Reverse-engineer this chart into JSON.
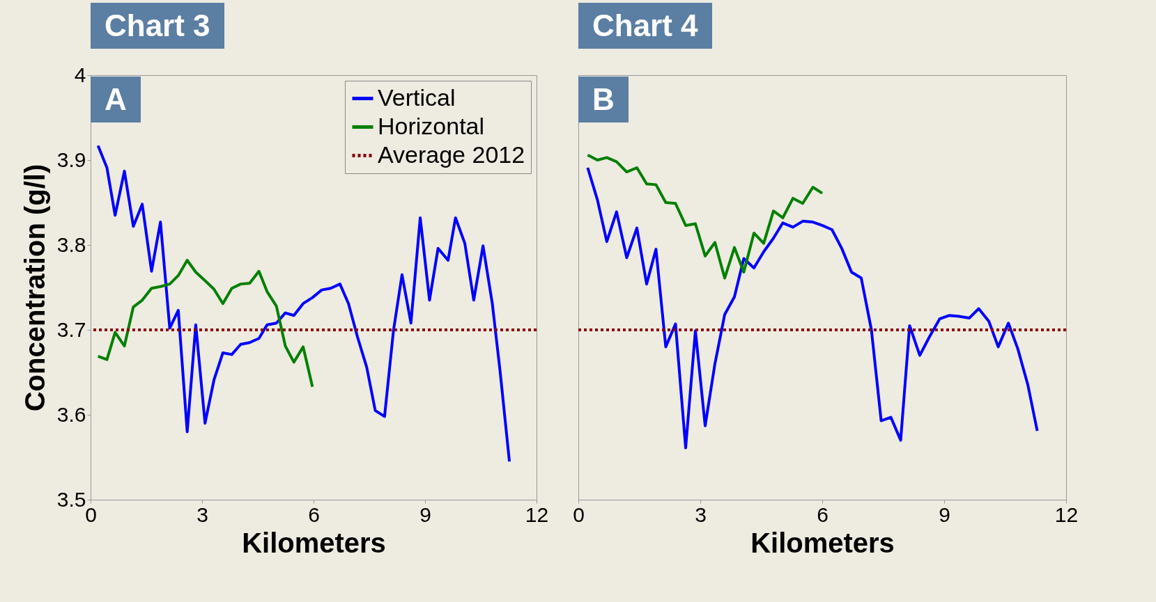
{
  "chart_data": [
    {
      "type": "line",
      "title": "Chart 3",
      "subtitle": "A",
      "xlabel": "Kilometers",
      "ylabel": "Concentration (g/l)",
      "xlim": [
        0,
        12
      ],
      "xticks": [
        0,
        3,
        6,
        9,
        12
      ],
      "ylim": [
        3.5,
        4
      ],
      "yticks": [
        3.5,
        3.6,
        3.7,
        3.8,
        3.9,
        4
      ],
      "legend": "top right",
      "grid": false,
      "ref_lines": [
        {
          "axis": "y",
          "value": 3.7,
          "label": "Average 2012",
          "color": "#8b0000",
          "line_style": "dotted"
        }
      ],
      "series": [
        {
          "name": "Vertical",
          "color": "#0000ff",
          "x": [
            0.2,
            0.44,
            0.66,
            0.91,
            1.15,
            1.39,
            1.64,
            1.88,
            2.13,
            2.36,
            2.6,
            2.83,
            3.08,
            3.32,
            3.56,
            3.8,
            4.04,
            4.28,
            4.53,
            4.75,
            5.0,
            5.24,
            5.47,
            5.72,
            5.97,
            6.22,
            6.46,
            6.71,
            6.94,
            7.18,
            7.43,
            7.66,
            7.91,
            8.15,
            8.38,
            8.62,
            8.87,
            9.12,
            9.35,
            9.62,
            9.82,
            10.07,
            10.31,
            10.56,
            10.81,
            11.02,
            11.27
          ],
          "values": [
            3.917,
            3.891,
            3.835,
            3.887,
            3.822,
            3.848,
            3.769,
            3.827,
            3.702,
            3.723,
            3.58,
            3.706,
            3.59,
            3.641,
            3.673,
            3.671,
            3.683,
            3.685,
            3.69,
            3.706,
            3.708,
            3.72,
            3.717,
            3.731,
            3.738,
            3.747,
            3.749,
            3.754,
            3.731,
            3.692,
            3.656,
            3.605,
            3.598,
            3.699,
            3.765,
            3.708,
            3.832,
            3.735,
            3.796,
            3.782,
            3.832,
            3.802,
            3.735,
            3.799,
            3.731,
            3.651,
            3.545
          ]
        },
        {
          "name": "Horizontal",
          "color": "#008000",
          "x": [
            0.2,
            0.44,
            0.66,
            0.91,
            1.15,
            1.39,
            1.64,
            1.88,
            2.13,
            2.36,
            2.6,
            2.83,
            3.08,
            3.32,
            3.56,
            3.8,
            4.04,
            4.28,
            4.53,
            4.75,
            5.0,
            5.24,
            5.47,
            5.72,
            5.97
          ],
          "values": [
            3.669,
            3.665,
            3.697,
            3.681,
            3.727,
            3.735,
            3.749,
            3.751,
            3.754,
            3.764,
            3.782,
            3.768,
            3.758,
            3.748,
            3.731,
            3.749,
            3.754,
            3.755,
            3.769,
            3.745,
            3.728,
            3.681,
            3.662,
            3.68,
            3.633
          ]
        }
      ]
    },
    {
      "type": "line",
      "title": "Chart 4",
      "subtitle": "B",
      "xlabel": "Kilometers",
      "xlim": [
        0,
        12
      ],
      "xticks": [
        0,
        3,
        6,
        9,
        12
      ],
      "ylim": [
        3.5,
        4
      ],
      "yticks": [
        3.5,
        3.6,
        3.7,
        3.8,
        3.9,
        4
      ],
      "tick_labels": "x",
      "grid": false,
      "ref_lines": [
        {
          "axis": "y",
          "value": 3.7,
          "color": "#8b0000",
          "line_style": "dotted"
        }
      ],
      "series": [
        {
          "color": "#0000ff",
          "x": [
            0.23,
            0.47,
            0.7,
            0.94,
            1.19,
            1.44,
            1.68,
            1.91,
            2.15,
            2.39,
            2.64,
            2.88,
            3.12,
            3.36,
            3.6,
            3.84,
            4.07,
            4.32,
            4.56,
            4.8,
            5.03,
            5.28,
            5.52,
            5.77,
            6.0,
            6.24,
            6.48,
            6.72,
            6.96,
            7.21,
            7.45,
            7.69,
            7.93,
            8.15,
            8.4,
            8.64,
            8.89,
            9.12,
            9.36,
            9.62,
            9.85,
            10.1,
            10.33,
            10.58,
            10.81,
            11.06,
            11.29
          ],
          "values": [
            3.891,
            3.853,
            3.804,
            3.839,
            3.785,
            3.82,
            3.754,
            3.795,
            3.68,
            3.707,
            3.561,
            3.699,
            3.587,
            3.66,
            3.718,
            3.739,
            3.784,
            3.773,
            3.792,
            3.808,
            3.826,
            3.821,
            3.828,
            3.827,
            3.823,
            3.818,
            3.796,
            3.768,
            3.761,
            3.7,
            3.593,
            3.597,
            3.57,
            3.705,
            3.67,
            3.692,
            3.713,
            3.717,
            3.716,
            3.714,
            3.725,
            3.71,
            3.68,
            3.708,
            3.678,
            3.635,
            3.581
          ]
        },
        {
          "color": "#008000",
          "x": [
            0.23,
            0.47,
            0.7,
            0.94,
            1.19,
            1.44,
            1.68,
            1.91,
            2.15,
            2.39,
            2.64,
            2.88,
            3.12,
            3.36,
            3.6,
            3.84,
            4.07,
            4.32,
            4.56,
            4.8,
            5.03,
            5.28,
            5.52,
            5.77,
            6.0
          ],
          "values": [
            3.906,
            3.9,
            3.903,
            3.898,
            3.886,
            3.891,
            3.872,
            3.871,
            3.85,
            3.849,
            3.823,
            3.825,
            3.787,
            3.803,
            3.761,
            3.797,
            3.768,
            3.814,
            3.802,
            3.84,
            3.832,
            3.855,
            3.849,
            3.868,
            3.861
          ]
        }
      ]
    }
  ]
}
